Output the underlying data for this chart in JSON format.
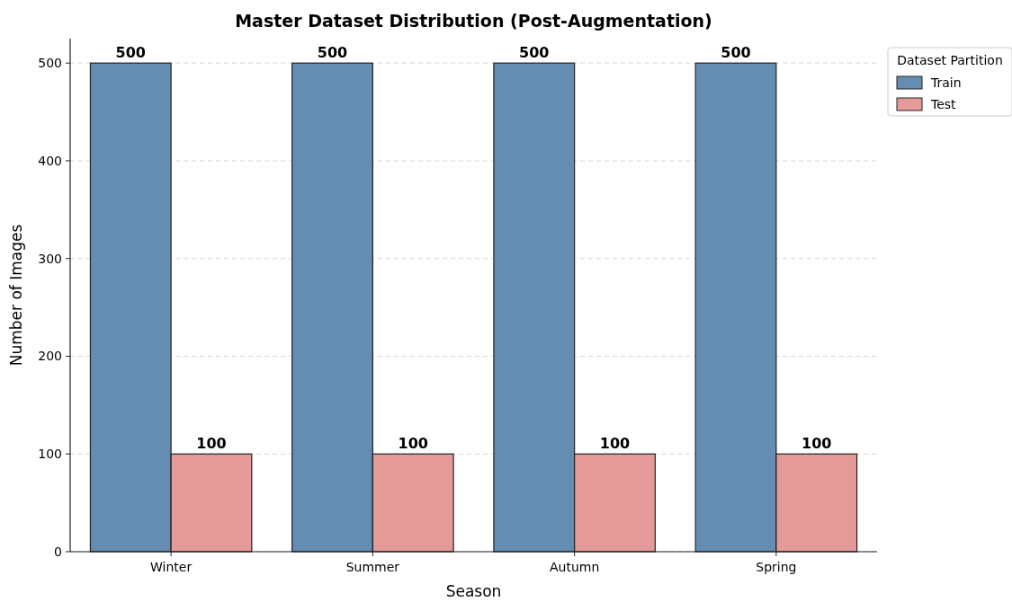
{
  "chart_data": {
    "type": "bar",
    "title": "Master Dataset Distribution (Post-Augmentation)",
    "xlabel": "Season",
    "ylabel": "Number of Images",
    "legend_title": "Dataset Partition",
    "categories": [
      "Winter",
      "Summer",
      "Autumn",
      "Spring"
    ],
    "series": [
      {
        "name": "Train",
        "color": "#658cb1",
        "values": [
          500,
          500,
          500,
          500
        ]
      },
      {
        "name": "Test",
        "color": "#e39a99",
        "values": [
          100,
          100,
          100,
          100
        ]
      }
    ],
    "ylim": [
      0,
      525
    ],
    "yticks": [
      0,
      100,
      200,
      300,
      400,
      500
    ],
    "grid": "y",
    "legend": "right",
    "data_labels": true
  }
}
